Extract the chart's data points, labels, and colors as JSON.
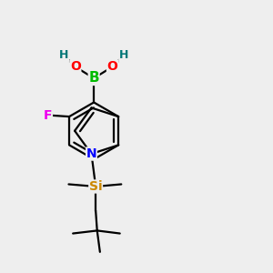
{
  "background_color": "#eeeeee",
  "atom_colors": {
    "B": "#00bb00",
    "O": "#ff0000",
    "H": "#007777",
    "F": "#ee00ee",
    "N": "#0000ff",
    "Si": "#cc8800",
    "C": "#000000"
  },
  "bond_color": "#000000",
  "bond_width": 1.6,
  "font_size_atoms": 10,
  "figsize": [
    3.0,
    3.0
  ],
  "dpi": 100
}
